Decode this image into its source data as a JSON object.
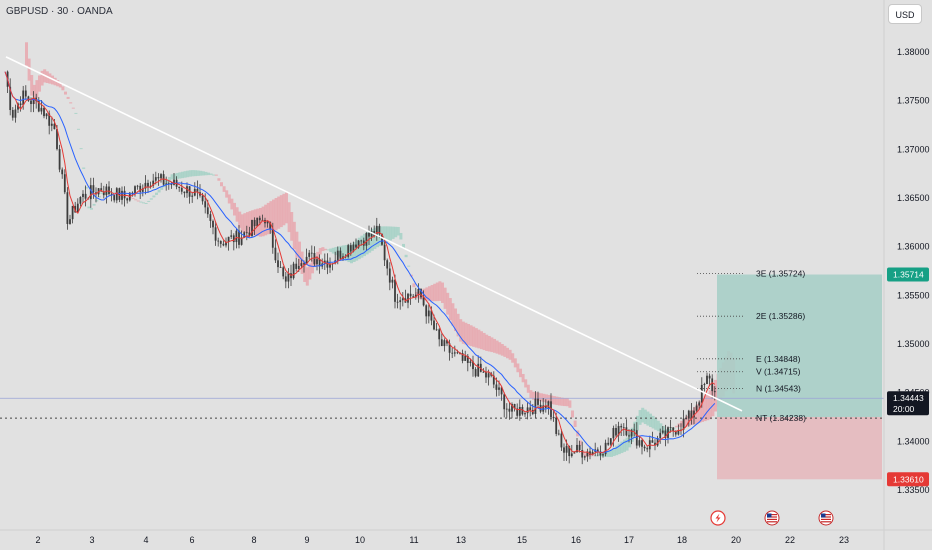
{
  "header": {
    "symbol_title": "GBPUSD · 30 · OANDA",
    "currency_button": "USD"
  },
  "colors": {
    "background": "#e1e1e1",
    "candle": "#3c3c3c",
    "blue_line": "#2962ff",
    "red_line": "#e53935",
    "kumo_bearish": "#e8a7ae",
    "kumo_bullish": "#a5d1c6",
    "trendline": "#ffffff",
    "profit_zone": "#a9cfc8",
    "loss_zone": "#e6b9be",
    "target_badge": "#16a085",
    "stop_badge": "#e53935",
    "price_badge": "#131722"
  },
  "chart_data": {
    "type": "candlestick",
    "instrument": "GBPUSD",
    "timeframe": "30",
    "source": "OANDA",
    "ylim": [
      1.334,
      1.382
    ],
    "y_ticks": [
      "1.38000",
      "1.37500",
      "1.37000",
      "1.36500",
      "1.36000",
      "1.35500",
      "1.35000",
      "1.34500",
      "1.34000",
      "1.33500"
    ],
    "x_ticks": [
      "2",
      "3",
      "4",
      "6",
      "8",
      "9",
      "10",
      "11",
      "13",
      "15",
      "16",
      "17",
      "18",
      "20",
      "22",
      "23"
    ],
    "price_path_anchors": [
      {
        "x": "2",
        "y": 1.3765
      },
      {
        "x": "3",
        "y": 1.3655
      },
      {
        "x": "4",
        "y": 1.366
      },
      {
        "x": "6",
        "y": 1.363
      },
      {
        "x": "8",
        "y": 1.36
      },
      {
        "x": "9",
        "y": 1.3575
      },
      {
        "x": "10",
        "y": 1.3615
      },
      {
        "x": "11",
        "y": 1.356
      },
      {
        "x": "13",
        "y": 1.349
      },
      {
        "x": "15",
        "y": 1.343
      },
      {
        "x": "16",
        "y": 1.339
      },
      {
        "x": "17",
        "y": 1.34
      },
      {
        "x": "18",
        "y": 1.345
      },
      {
        "x": "20",
        "y": 1.3444
      }
    ],
    "trendline": {
      "from": {
        "x": "2",
        "y": 1.3795
      },
      "to": {
        "x": "20",
        "y": 1.3457
      }
    },
    "current_price": "1.34443",
    "countdown": "20:00",
    "position": {
      "entry": 1.3425,
      "target": "1.35714",
      "stop": "1.33610",
      "from_x": "20",
      "to_x": "23"
    },
    "levels": [
      {
        "label": "3E (1.35724)",
        "value": 1.35724
      },
      {
        "label": "2E (1.35286)",
        "value": 1.35286
      },
      {
        "label": "E (1.34848)",
        "value": 1.34848
      },
      {
        "label": "V (1.34715)",
        "value": 1.34715
      },
      {
        "label": "N (1.34543)",
        "value": 1.34543
      },
      {
        "label": "NT (1.34238)",
        "value": 1.34238
      }
    ],
    "event_icons": [
      {
        "x": "20",
        "icon": "lightning-event-icon"
      },
      {
        "x": "22",
        "icon": "us-flag-icon"
      },
      {
        "x": "23",
        "icon": "us-flag-icon"
      }
    ]
  }
}
